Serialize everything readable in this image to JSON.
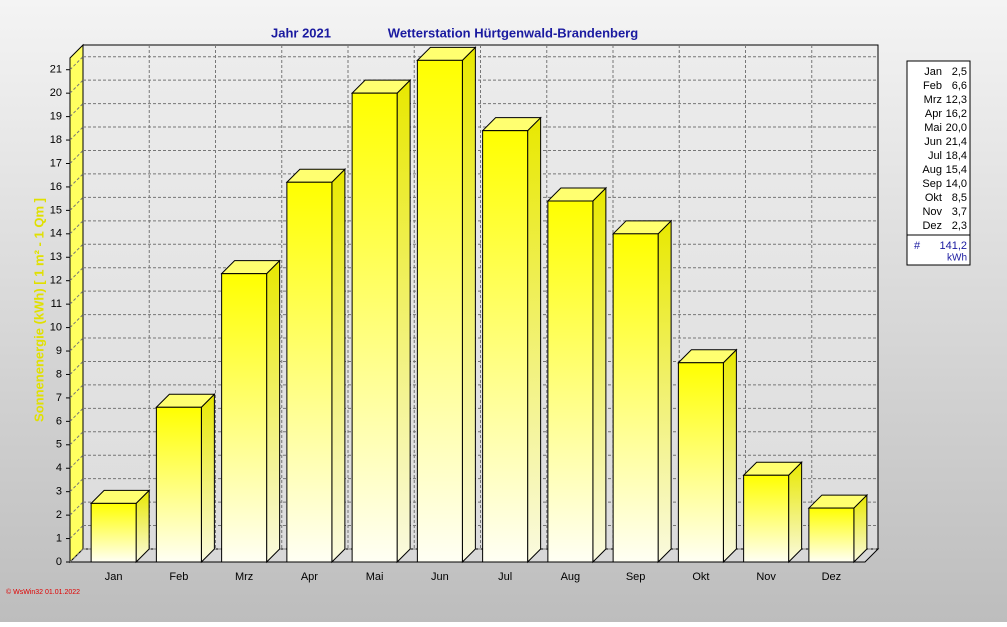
{
  "chart_data": {
    "type": "bar3d",
    "title": "Jahr  2021",
    "subtitle": "Wetterstation Hürtgenwald-Brandenberg",
    "y_label": "Sonnenenergie  (kWh)   [ 1 m² - 1 Qm ]",
    "footer": "© WsWin32  01.01.2022",
    "categories": [
      "Jan",
      "Feb",
      "Mrz",
      "Apr",
      "Mai",
      "Jun",
      "Jul",
      "Aug",
      "Sep",
      "Okt",
      "Nov",
      "Dez"
    ],
    "values": [
      2.5,
      6.6,
      12.3,
      16.2,
      20.0,
      21.4,
      18.4,
      15.4,
      14.0,
      8.5,
      3.7,
      2.3
    ],
    "value_labels": [
      "2,5",
      "6,6",
      "12,3",
      "16,2",
      "20,0",
      "21,4",
      "18,4",
      "15,4",
      "14,0",
      "8,5",
      "3,7",
      "2,3"
    ],
    "color": "#ffff00",
    "ylim": [
      0,
      21.5
    ],
    "yticks": [
      0,
      1,
      2,
      3,
      4,
      5,
      6,
      7,
      8,
      9,
      10,
      11,
      12,
      13,
      14,
      15,
      16,
      17,
      18,
      19,
      20,
      21
    ],
    "grid": true,
    "total_marker": "#",
    "total": "141,2",
    "total_unit": "kWh"
  }
}
